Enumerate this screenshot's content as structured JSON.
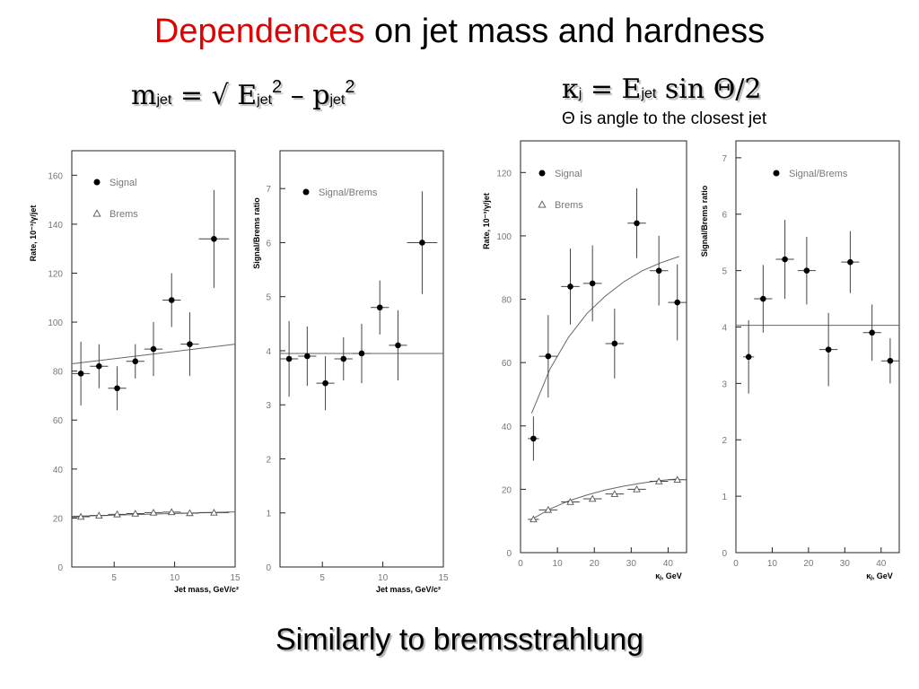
{
  "slide": {
    "title_red": "Dependences",
    "title_rest": " on jet mass and hardness",
    "formula_left": {
      "m": "m",
      "jet": "jet",
      "eq": " = √ ",
      "E": "E",
      "sq": "2",
      "minus": " – ",
      "p": "p"
    },
    "formula_right": {
      "kappa": "κ",
      "j": "j",
      "eq": " = ",
      "E": "E",
      "jet": "jet",
      "sin": " sin Θ/2"
    },
    "note": "Θ is angle to the closest jet",
    "bottom": "Similarly to bremsstrahlung"
  },
  "chart_data": [
    {
      "type": "scatter",
      "ylabel": "Rate, 10⁻³/γ/jet",
      "xlabel": "Jet  mass, GeV/c²",
      "xlim": [
        1.5,
        15
      ],
      "ylim": [
        0,
        170
      ],
      "xticks": [
        5,
        10,
        15
      ],
      "yticks": [
        0,
        20,
        40,
        60,
        80,
        100,
        120,
        140,
        160
      ],
      "series": [
        {
          "name": "Signal",
          "marker": "dot",
          "x": [
            2.25,
            3.75,
            5.25,
            6.75,
            8.25,
            9.75,
            11.25,
            13.25
          ],
          "y": [
            79,
            82,
            73,
            84,
            89,
            109,
            91,
            134
          ],
          "yerr": [
            13,
            9,
            9,
            7,
            11,
            11,
            13,
            20
          ],
          "xerr": [
            0.75,
            0.75,
            0.75,
            0.75,
            0.75,
            0.75,
            0.75,
            1.25
          ]
        },
        {
          "name": "Brems",
          "marker": "triangle",
          "x": [
            2.25,
            3.75,
            5.25,
            6.75,
            8.25,
            9.75,
            11.25,
            13.25
          ],
          "y": [
            20.5,
            21,
            21.5,
            21.8,
            22.2,
            22.4,
            22,
            22.2
          ],
          "yerr": [
            0,
            0,
            0,
            0,
            0,
            0,
            0,
            0
          ],
          "xerr": [
            0.75,
            0.75,
            0.75,
            0.75,
            0.75,
            0.75,
            0.75,
            1.25
          ]
        }
      ],
      "fits": [
        {
          "x": [
            1.5,
            15
          ],
          "y": [
            83,
            91
          ]
        },
        {
          "x": [
            1.5,
            15
          ],
          "y": [
            20.7,
            22.5
          ]
        }
      ]
    },
    {
      "type": "scatter",
      "ylabel": "Signal/Brems ratio",
      "xlabel": "Jet  mass, GeV/c²",
      "xlim": [
        1.5,
        15
      ],
      "ylim": [
        0,
        7.7
      ],
      "xticks": [
        5,
        10,
        15
      ],
      "yticks": [
        0,
        1,
        2,
        3,
        4,
        5,
        6,
        7
      ],
      "series": [
        {
          "name": "Signal/Brems",
          "marker": "dot",
          "x": [
            2.25,
            3.75,
            5.25,
            6.75,
            8.25,
            9.75,
            11.25,
            13.25
          ],
          "y": [
            3.85,
            3.9,
            3.4,
            3.85,
            3.95,
            4.8,
            4.1,
            6.0
          ],
          "yerr": [
            0.7,
            0.55,
            0.5,
            0.4,
            0.55,
            0.5,
            0.65,
            0.95
          ],
          "xerr": [
            0.75,
            0.75,
            0.75,
            0.75,
            0.75,
            0.75,
            0.75,
            1.25
          ]
        }
      ],
      "fits": [
        {
          "x": [
            1.5,
            15
          ],
          "y": [
            3.95,
            3.95
          ]
        }
      ]
    },
    {
      "type": "scatter",
      "ylabel": "Rate, 10⁻³/γ/jet",
      "xlabel": "κⱼ, GeV",
      "xlim": [
        0,
        45
      ],
      "ylim": [
        0,
        130
      ],
      "xticks": [
        0,
        10,
        20,
        30,
        40
      ],
      "yticks": [
        0,
        20,
        40,
        60,
        80,
        100,
        120
      ],
      "series": [
        {
          "name": "Signal",
          "marker": "dot",
          "x": [
            3.5,
            7.5,
            13.5,
            19.5,
            25.5,
            31.5,
            37.5,
            42.5
          ],
          "y": [
            36,
            62,
            84,
            85,
            66,
            104,
            89,
            79
          ],
          "yerr": [
            7,
            13,
            12,
            12,
            11,
            11,
            11,
            12
          ],
          "xerr": [
            1.5,
            2.5,
            2.5,
            2.5,
            2.5,
            2.5,
            2.5,
            2.5
          ]
        },
        {
          "name": "Brems",
          "marker": "triangle",
          "x": [
            3.5,
            7.5,
            13.5,
            19.5,
            25.5,
            31.5,
            37.5,
            42.5
          ],
          "y": [
            10.5,
            13.5,
            16,
            17,
            18.5,
            20,
            22.5,
            23
          ],
          "yerr": [
            0,
            0,
            0,
            0,
            0,
            0,
            0,
            0
          ],
          "xerr": [
            1.5,
            2.5,
            2.5,
            2.5,
            2.5,
            2.5,
            2.5,
            2.5
          ]
        }
      ],
      "fits": [
        {
          "x": [
            3,
            8,
            13,
            18,
            23,
            28,
            33,
            38,
            43
          ],
          "y": [
            44,
            58,
            68,
            75.5,
            81,
            85.5,
            89,
            91.5,
            93.5
          ]
        },
        {
          "x": [
            3,
            8,
            13,
            18,
            23,
            28,
            33,
            38,
            43
          ],
          "y": [
            10.5,
            13.8,
            16.3,
            18.2,
            19.8,
            21,
            22,
            22.8,
            23.3
          ]
        }
      ]
    },
    {
      "type": "scatter",
      "ylabel": "Signal/Brems ratio",
      "xlabel": "κⱼ, GeV",
      "xlim": [
        0,
        45
      ],
      "ylim": [
        0,
        7.3
      ],
      "xticks": [
        0,
        10,
        20,
        30,
        40
      ],
      "yticks": [
        0,
        1,
        2,
        3,
        4,
        5,
        6,
        7
      ],
      "series": [
        {
          "name": "Signal/Brems",
          "marker": "dot",
          "x": [
            3.5,
            7.5,
            13.5,
            19.5,
            25.5,
            31.5,
            37.5,
            42.5
          ],
          "y": [
            3.47,
            4.5,
            5.2,
            5.0,
            3.6,
            5.15,
            3.9,
            3.4
          ],
          "yerr": [
            0.65,
            0.6,
            0.7,
            0.6,
            0.65,
            0.55,
            0.5,
            0.4
          ],
          "xerr": [
            1.5,
            2.5,
            2.5,
            2.5,
            2.5,
            2.5,
            2.5,
            2.5
          ]
        }
      ],
      "fits": [
        {
          "x": [
            0,
            45
          ],
          "y": [
            4.03,
            4.03
          ]
        }
      ]
    }
  ]
}
